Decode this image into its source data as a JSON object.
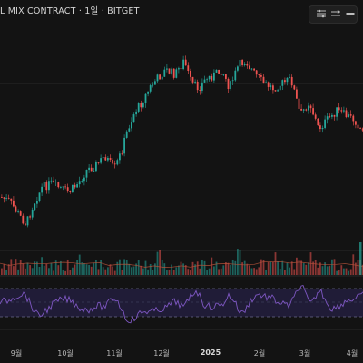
{
  "header": {
    "title": "L MIX CONTRACT · 1일 · BITGET"
  },
  "toolbar": {
    "icons": [
      "indicator-settings-icon",
      "eye-icon",
      "more-icon"
    ]
  },
  "time_axis": {
    "ticks": [
      "9월",
      "10월",
      "11월",
      "12월",
      "2025",
      "2월",
      "3월",
      "4월"
    ]
  },
  "colors": {
    "background": "#131313",
    "up": "#26a69a",
    "down": "#ef5350",
    "rsi_line": "#7e57c2",
    "rsi_band": "#2a2350",
    "grid": "#1e1e1e"
  }
}
